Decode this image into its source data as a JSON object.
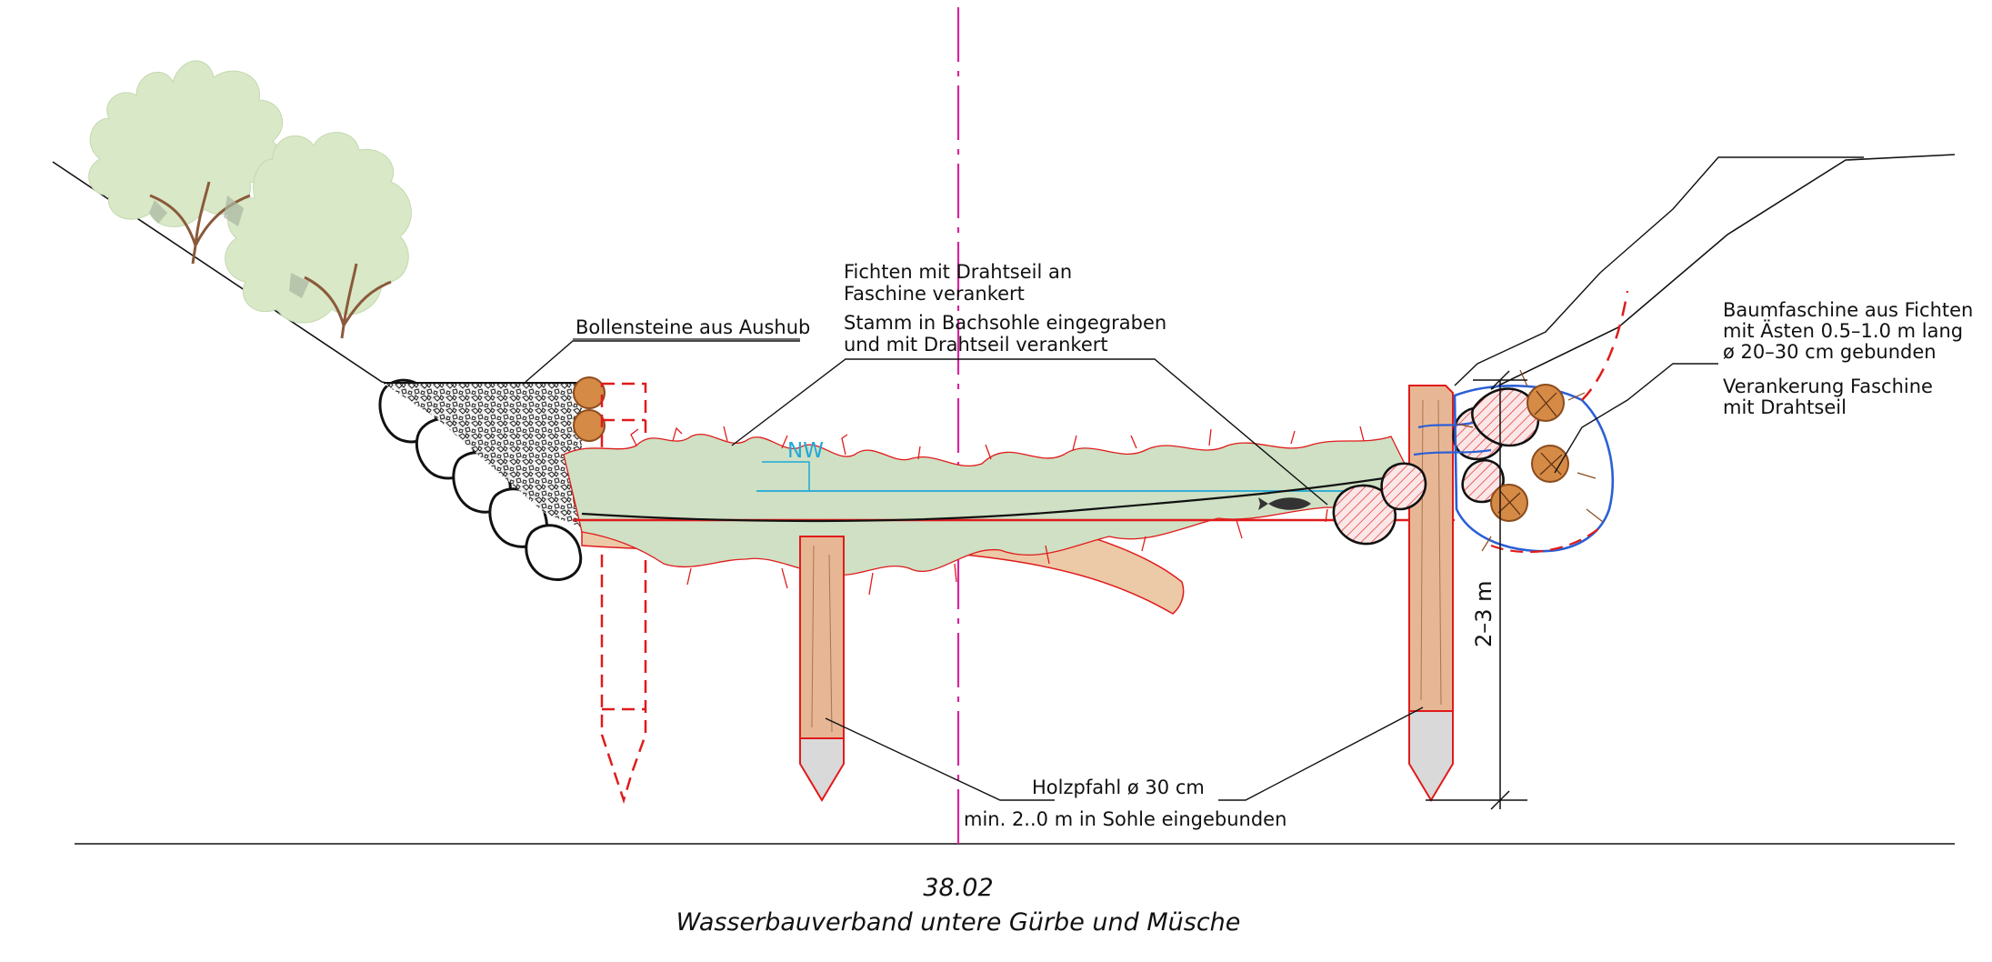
{
  "labels": {
    "bollensteine": "Bollensteine aus Aushub",
    "fichten_line1": "Fichten mit Drahtseil an",
    "fichten_line2": "Faschine verankert",
    "stamm_line1": "Stamm in Bachsohle eingegraben",
    "stamm_line2": "und mit Drahtseil verankert",
    "baum_line1": "Baumfaschine aus Fichten",
    "baum_line2": "mit Ästen 0.5–1.0 m lang",
    "baum_line3": "ø 20–30 cm gebunden",
    "veranker_line1": "Verankerung Faschine",
    "veranker_line2": "mit Drahtseil",
    "nw": "NW",
    "dimension": "2–3 m",
    "holzpfahl": "Holzpfahl ø 30 cm",
    "eingebunden": "min. 2..0 m in Sohle eingebunden"
  },
  "caption": {
    "number": "38.02",
    "title": "Wasserbauverband untere Gürbe und Müsche"
  },
  "colors": {
    "line": "#111111",
    "red": "#e01b1b",
    "center_axis": "#d9259b",
    "water": "#1fa8d8",
    "wire": "#2a5fd6",
    "foliage": "#cfe0c4",
    "trunk": "#eccaa8",
    "pile_wood": "#e7b795",
    "pile_tip": "#d9d9d9",
    "fascine_log": "#d58a45",
    "tree_canopy": "#d9e8c6",
    "tree_stem": "#8a5a3a"
  },
  "icons": {
    "trees": "shrub-icon",
    "fish": "fish-icon",
    "stones": "boulder-icon"
  }
}
